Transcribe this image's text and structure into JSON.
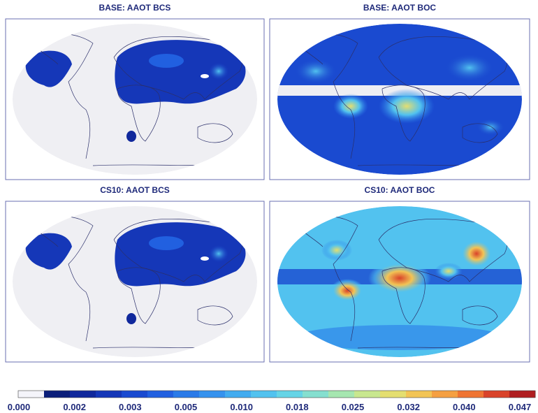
{
  "panels": [
    {
      "title": "BASE:  AAOT BCS"
    },
    {
      "title": "BASE:  AAOT BOC"
    },
    {
      "title": "CS10:  AAOT BCS"
    },
    {
      "title": "CS10:  AAOT BOC"
    }
  ],
  "colorbar": {
    "labels": [
      "0.000",
      "0.002",
      "0.003",
      "0.005",
      "0.010",
      "0.018",
      "0.025",
      "0.032",
      "0.040",
      "0.047"
    ],
    "colors": [
      "#f4f4fa",
      "#0b1e7a",
      "#10289c",
      "#1537b8",
      "#1a4ad0",
      "#2160e0",
      "#2a7ae8",
      "#3592ee",
      "#42acf0",
      "#52c2ef",
      "#66d4e6",
      "#85dfcf",
      "#a6e6b0",
      "#c8e78f",
      "#e4de70",
      "#f2c455",
      "#f5a042",
      "#ef7433",
      "#d9432a",
      "#b01e20"
    ]
  }
}
